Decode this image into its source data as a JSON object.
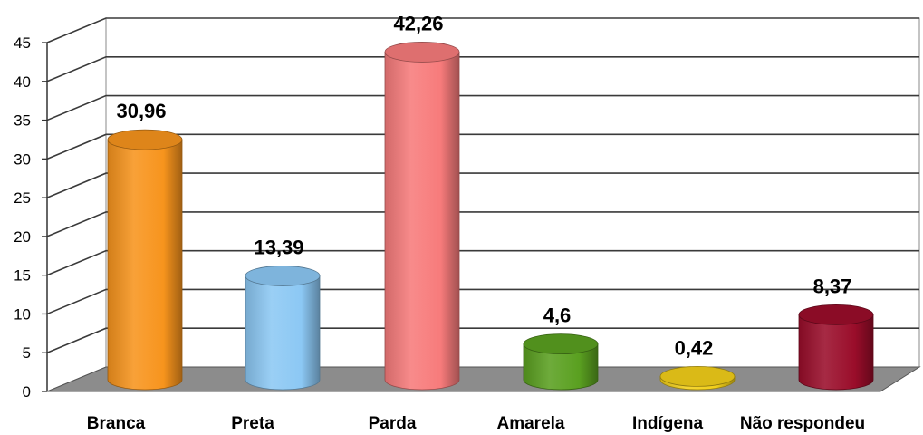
{
  "chart_data": {
    "type": "bar",
    "categories": [
      "Branca",
      "Preta",
      "Parda",
      "Amarela",
      "Indígena",
      "Não respondeu"
    ],
    "values": [
      30.96,
      13.39,
      42.26,
      4.6,
      0.42,
      8.37
    ],
    "data_labels": [
      "30,96",
      "13,39",
      "42,26",
      "4,6",
      "0,42",
      "8,37"
    ],
    "ylim": [
      0,
      45
    ],
    "yticks": [
      0,
      5,
      10,
      15,
      20,
      25,
      30,
      35,
      40,
      45
    ],
    "grid": true,
    "style": "3d-cylinder",
    "colors": [
      "#f7941d",
      "#8cc8f4",
      "#f77b7b",
      "#5aa020",
      "#f2cf1a",
      "#9a0d2a"
    ]
  }
}
